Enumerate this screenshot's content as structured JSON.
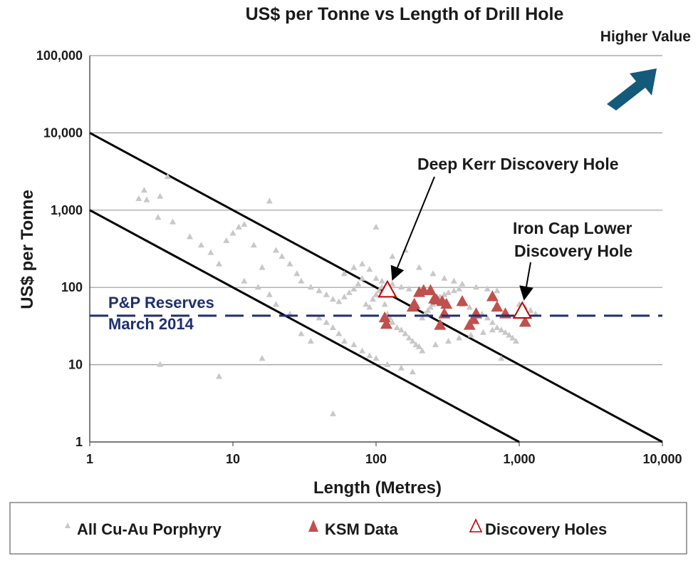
{
  "chart_data": {
    "type": "scatter",
    "title": "US$ per Tonne vs Length of Drill Hole",
    "xlabel": "Length (Metres)",
    "ylabel": "US$ per Tonne",
    "x_scale": "log",
    "y_scale": "log",
    "xlim": [
      1,
      10000
    ],
    "ylim": [
      1,
      100000
    ],
    "x_ticks": [
      "1",
      "10",
      "100",
      "1,000",
      "10,000"
    ],
    "y_ticks": [
      "1",
      "10",
      "100",
      "1,000",
      "10,000",
      "100,000"
    ],
    "grid": "horizontal",
    "corner_label": "Higher Value",
    "colors": {
      "all_cu_au": "#c8c8c8",
      "ksm": "#c0504d",
      "discovery": "#c00000",
      "reserves_line": "#1f2f6e",
      "arrow": "#145a7a",
      "lines": "#000000"
    },
    "series": [
      {
        "name": "All Cu-Au Porphyry",
        "points": [
          [
            2.2,
            1400
          ],
          [
            2.4,
            1800
          ],
          [
            2.5,
            1350
          ],
          [
            3,
            800
          ],
          [
            3.1,
            1500
          ],
          [
            3.5,
            2700
          ],
          [
            3.1,
            10
          ],
          [
            3.8,
            700
          ],
          [
            5,
            450
          ],
          [
            6,
            350
          ],
          [
            7,
            280
          ],
          [
            8,
            200
          ],
          [
            9,
            400
          ],
          [
            10,
            500
          ],
          [
            11,
            600
          ],
          [
            12,
            650
          ],
          [
            14,
            350
          ],
          [
            16,
            180
          ],
          [
            18,
            1300
          ],
          [
            8,
            7
          ],
          [
            20,
            300
          ],
          [
            22,
            250
          ],
          [
            25,
            200
          ],
          [
            28,
            150
          ],
          [
            30,
            120
          ],
          [
            35,
            100
          ],
          [
            40,
            90
          ],
          [
            45,
            80
          ],
          [
            50,
            70
          ],
          [
            55,
            65
          ],
          [
            60,
            75
          ],
          [
            65,
            85
          ],
          [
            70,
            95
          ],
          [
            75,
            110
          ],
          [
            80,
            130
          ],
          [
            85,
            60
          ],
          [
            90,
            55
          ],
          [
            95,
            70
          ],
          [
            100,
            80
          ],
          [
            105,
            90
          ],
          [
            110,
            100
          ],
          [
            115,
            60
          ],
          [
            120,
            45
          ],
          [
            125,
            40
          ],
          [
            130,
            35
          ],
          [
            140,
            30
          ],
          [
            150,
            28
          ],
          [
            160,
            25
          ],
          [
            170,
            22
          ],
          [
            180,
            20
          ],
          [
            190,
            18
          ],
          [
            200,
            17
          ],
          [
            210,
            40
          ],
          [
            220,
            45
          ],
          [
            230,
            50
          ],
          [
            240,
            55
          ],
          [
            250,
            60
          ],
          [
            260,
            65
          ],
          [
            270,
            70
          ],
          [
            280,
            75
          ],
          [
            300,
            80
          ],
          [
            320,
            85
          ],
          [
            350,
            90
          ],
          [
            380,
            95
          ],
          [
            400,
            60
          ],
          [
            450,
            55
          ],
          [
            500,
            50
          ],
          [
            550,
            45
          ],
          [
            600,
            40
          ],
          [
            650,
            35
          ],
          [
            700,
            30
          ],
          [
            750,
            28
          ],
          [
            800,
            26
          ],
          [
            850,
            24
          ],
          [
            900,
            22
          ],
          [
            950,
            20
          ],
          [
            1000,
            60
          ],
          [
            1100,
            55
          ],
          [
            1200,
            50
          ],
          [
            1300,
            45
          ],
          [
            60,
            150
          ],
          [
            70,
            180
          ],
          [
            80,
            200
          ],
          [
            90,
            170
          ],
          [
            100,
            130
          ],
          [
            110,
            120
          ],
          [
            130,
            110
          ],
          [
            150,
            100
          ],
          [
            170,
            95
          ],
          [
            200,
            90
          ],
          [
            40,
            40
          ],
          [
            45,
            35
          ],
          [
            50,
            30
          ],
          [
            55,
            25
          ],
          [
            60,
            20
          ],
          [
            70,
            18
          ],
          [
            80,
            15
          ],
          [
            90,
            13
          ],
          [
            100,
            12
          ],
          [
            120,
            10
          ],
          [
            150,
            9
          ],
          [
            180,
            8
          ],
          [
            210,
            15
          ],
          [
            260,
            18
          ],
          [
            320,
            20
          ],
          [
            380,
            22
          ],
          [
            460,
            24
          ],
          [
            560,
            26
          ],
          [
            650,
            28
          ],
          [
            750,
            12
          ],
          [
            50,
            2.3
          ],
          [
            30,
            25
          ],
          [
            35,
            20
          ],
          [
            25,
            45
          ],
          [
            20,
            60
          ],
          [
            18,
            80
          ],
          [
            15,
            100
          ],
          [
            12,
            120
          ],
          [
            16,
            12
          ],
          [
            100,
            600
          ],
          [
            130,
            250
          ],
          [
            160,
            300
          ],
          [
            200,
            180
          ],
          [
            250,
            150
          ],
          [
            300,
            130
          ],
          [
            350,
            120
          ],
          [
            400,
            110
          ],
          [
            500,
            100
          ],
          [
            600,
            95
          ],
          [
            700,
            90
          ]
        ]
      },
      {
        "name": "KSM Data",
        "points": [
          [
            115,
            40
          ],
          [
            118,
            33
          ],
          [
            180,
            55
          ],
          [
            185,
            60
          ],
          [
            200,
            85
          ],
          [
            215,
            90
          ],
          [
            240,
            90
          ],
          [
            255,
            70
          ],
          [
            265,
            68
          ],
          [
            280,
            32
          ],
          [
            290,
            65
          ],
          [
            300,
            45
          ],
          [
            310,
            60
          ],
          [
            400,
            65
          ],
          [
            450,
            32
          ],
          [
            480,
            38
          ],
          [
            500,
            45
          ],
          [
            650,
            75
          ],
          [
            700,
            55
          ],
          [
            800,
            45
          ],
          [
            1100,
            35
          ]
        ]
      },
      {
        "name": "Discovery Holes",
        "points": [
          [
            120,
            90
          ],
          [
            1050,
            48
          ]
        ]
      }
    ],
    "reference_lines": [
      {
        "x": [
          1,
          10000
        ],
        "y": [
          10000,
          1
        ]
      },
      {
        "x": [
          1,
          1000
        ],
        "y": [
          1000,
          1
        ]
      }
    ],
    "reserves": {
      "label_line1": "P&P Reserves",
      "label_line2": "March 2014",
      "value": 43
    },
    "annotations": [
      {
        "text": "Deep Kerr Discovery Hole",
        "target": [
          120,
          90
        ]
      },
      {
        "text_line1": "Iron Cap Lower",
        "text_line2": "Discovery Hole",
        "target": [
          1050,
          48
        ]
      }
    ]
  },
  "legend": {
    "items": [
      {
        "label": "All Cu-Au Porphyry"
      },
      {
        "label": "KSM Data"
      },
      {
        "label": "Discovery Holes"
      }
    ]
  }
}
